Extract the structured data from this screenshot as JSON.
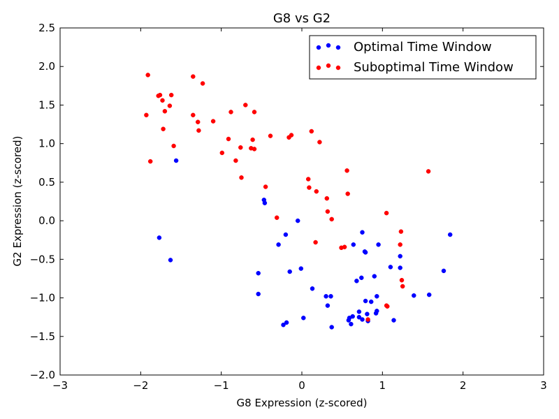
{
  "chart_data": {
    "type": "scatter",
    "title": "G8 vs G2",
    "xlabel": "G8 Expression (z-scored)",
    "ylabel": "G2 Expression (z-scored)",
    "xlim": [
      -3,
      3
    ],
    "ylim": [
      -2,
      2.5
    ],
    "xticks": [
      -3,
      -2,
      -1,
      0,
      1,
      2,
      3
    ],
    "yticks": [
      -2.0,
      -1.5,
      -1.0,
      -0.5,
      0.0,
      0.5,
      1.0,
      1.5,
      2.0,
      2.5
    ],
    "xtick_labels": [
      "−3",
      "−2",
      "−1",
      "0",
      "1",
      "2",
      "3"
    ],
    "ytick_labels": [
      "−2.0",
      "−1.5",
      "−1.0",
      "−0.5",
      "0.0",
      "0.5",
      "1.0",
      "1.5",
      "2.0",
      "2.5"
    ],
    "grid": false,
    "legend_position": "top-right",
    "series": [
      {
        "name": "Optimal Time Window",
        "color": "#0000ff",
        "points": [
          [
            -1.56,
            0.78
          ],
          [
            -1.77,
            -0.22
          ],
          [
            -1.63,
            -0.51
          ],
          [
            -0.47,
            0.27
          ],
          [
            -0.46,
            0.23
          ],
          [
            -0.05,
            0.0
          ],
          [
            -0.2,
            -0.18
          ],
          [
            -0.29,
            -0.31
          ],
          [
            -0.54,
            -0.68
          ],
          [
            -0.15,
            -0.66
          ],
          [
            -0.01,
            -0.62
          ],
          [
            -0.54,
            -0.95
          ],
          [
            -0.23,
            -1.35
          ],
          [
            -0.19,
            -1.32
          ],
          [
            0.02,
            -1.26
          ],
          [
            0.13,
            -0.88
          ],
          [
            0.3,
            -0.98
          ],
          [
            0.32,
            -1.1
          ],
          [
            0.36,
            -0.98
          ],
          [
            0.37,
            -1.38
          ],
          [
            0.58,
            -1.29
          ],
          [
            0.59,
            -1.26
          ],
          [
            0.61,
            -1.34
          ],
          [
            0.63,
            -1.24
          ],
          [
            0.64,
            -0.31
          ],
          [
            0.68,
            -0.78
          ],
          [
            0.71,
            -1.25
          ],
          [
            0.71,
            -1.18
          ],
          [
            0.74,
            -0.74
          ],
          [
            0.75,
            -1.28
          ],
          [
            0.75,
            -0.15
          ],
          [
            0.78,
            -0.4
          ],
          [
            0.79,
            -0.41
          ],
          [
            0.79,
            -1.04
          ],
          [
            0.81,
            -1.21
          ],
          [
            0.82,
            -1.3
          ],
          [
            0.86,
            -1.05
          ],
          [
            0.9,
            -0.72
          ],
          [
            0.92,
            -1.2
          ],
          [
            0.93,
            -1.17
          ],
          [
            0.93,
            -0.98
          ],
          [
            0.95,
            -0.31
          ],
          [
            1.1,
            -0.6
          ],
          [
            1.14,
            -1.29
          ],
          [
            1.22,
            -0.46
          ],
          [
            1.22,
            -0.61
          ],
          [
            1.39,
            -0.97
          ],
          [
            1.58,
            -0.96
          ],
          [
            1.76,
            -0.65
          ],
          [
            1.84,
            -0.18
          ]
        ]
      },
      {
        "name": "Suboptimal Time Window",
        "color": "#ff0000",
        "points": [
          [
            -1.91,
            1.89
          ],
          [
            -1.93,
            1.37
          ],
          [
            -1.88,
            0.77
          ],
          [
            -1.78,
            1.62
          ],
          [
            -1.76,
            1.63
          ],
          [
            -1.73,
            1.56
          ],
          [
            -1.72,
            1.19
          ],
          [
            -1.7,
            1.42
          ],
          [
            -1.64,
            1.49
          ],
          [
            -1.62,
            1.63
          ],
          [
            -1.59,
            0.97
          ],
          [
            -1.35,
            1.87
          ],
          [
            -1.35,
            1.37
          ],
          [
            -1.29,
            1.28
          ],
          [
            -1.28,
            1.17
          ],
          [
            -1.23,
            1.78
          ],
          [
            -1.1,
            1.29
          ],
          [
            -0.99,
            0.88
          ],
          [
            -0.91,
            1.06
          ],
          [
            -0.88,
            1.41
          ],
          [
            -0.82,
            0.78
          ],
          [
            -0.76,
            0.95
          ],
          [
            -0.75,
            0.56
          ],
          [
            -0.7,
            1.5
          ],
          [
            -0.63,
            0.94
          ],
          [
            -0.61,
            1.05
          ],
          [
            -0.59,
            0.93
          ],
          [
            -0.59,
            1.41
          ],
          [
            -0.45,
            0.44
          ],
          [
            -0.39,
            1.1
          ],
          [
            -0.31,
            0.04
          ],
          [
            -0.16,
            1.08
          ],
          [
            -0.13,
            1.11
          ],
          [
            0.08,
            0.54
          ],
          [
            0.09,
            0.43
          ],
          [
            0.12,
            1.16
          ],
          [
            0.17,
            -0.28
          ],
          [
            0.18,
            0.38
          ],
          [
            0.22,
            1.02
          ],
          [
            0.31,
            0.29
          ],
          [
            0.32,
            0.12
          ],
          [
            0.37,
            0.02
          ],
          [
            0.49,
            -0.35
          ],
          [
            0.53,
            -0.34
          ],
          [
            0.56,
            0.65
          ],
          [
            0.57,
            0.35
          ],
          [
            0.82,
            -1.28
          ],
          [
            1.05,
            0.1
          ],
          [
            1.05,
            -1.1
          ],
          [
            1.06,
            -1.11
          ],
          [
            1.22,
            -0.31
          ],
          [
            1.23,
            -0.14
          ],
          [
            1.24,
            -0.77
          ],
          [
            1.25,
            -0.85
          ],
          [
            1.57,
            0.64
          ]
        ]
      }
    ]
  }
}
